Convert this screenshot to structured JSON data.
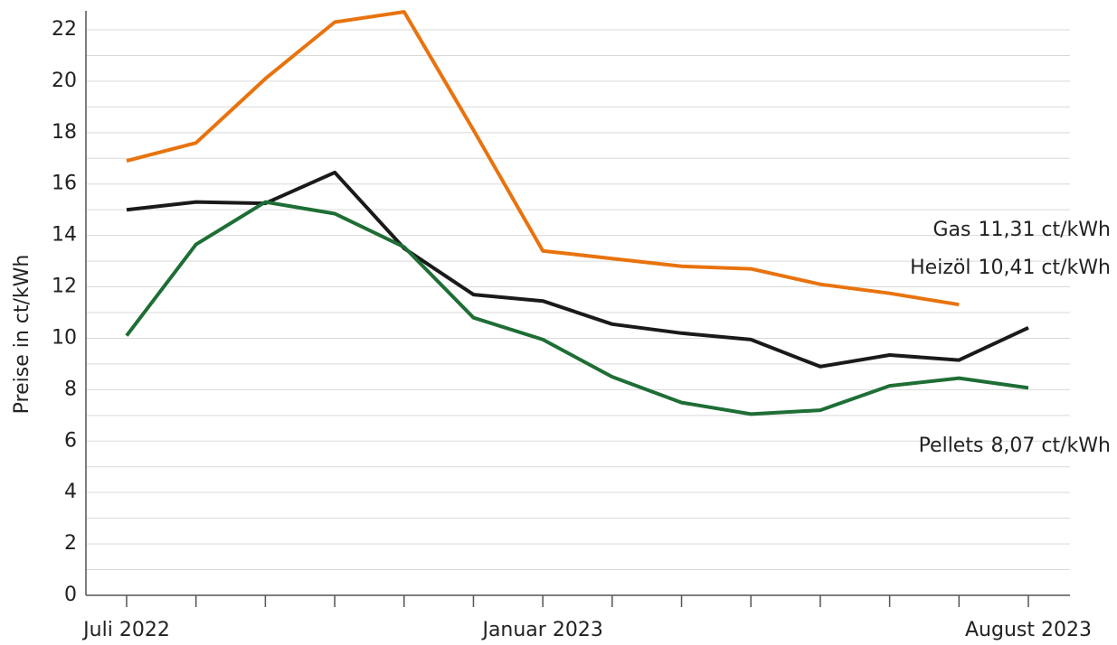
{
  "chart_data": {
    "type": "line",
    "y_label": "Preise in ct/kWh",
    "categories": [
      "Juli 2022",
      null,
      null,
      null,
      null,
      null,
      "Januar 2023",
      null,
      null,
      null,
      null,
      null,
      null,
      "August 2023"
    ],
    "series": [
      {
        "name": "Gas",
        "color": "#e8730e",
        "end_label": "11,31 ct/kWh",
        "values": [
          16.9,
          17.6,
          20.1,
          22.3,
          22.7,
          18.1,
          13.4,
          13.1,
          12.8,
          12.7,
          12.1,
          11.75,
          11.31,
          null
        ]
      },
      {
        "name": "Heizöl",
        "color": "#1a1a1a",
        "end_label": "10,41 ct/kWh",
        "values": [
          15.0,
          15.3,
          15.25,
          16.45,
          13.5,
          11.7,
          11.45,
          10.55,
          10.2,
          9.95,
          8.9,
          9.35,
          9.15,
          10.41
        ]
      },
      {
        "name": "Pellets",
        "color": "#1e6e35",
        "end_label": "8,07 ct/kWh",
        "values": [
          10.1,
          13.65,
          15.3,
          14.85,
          13.55,
          10.8,
          9.95,
          8.5,
          7.5,
          7.05,
          7.2,
          8.15,
          8.45,
          8.07
        ]
      }
    ],
    "ylim": [
      0,
      23
    ],
    "yticks": [
      0,
      2,
      4,
      6,
      8,
      10,
      12,
      14,
      16,
      18,
      20,
      22
    ],
    "yticks_minor": [
      1,
      3,
      5,
      7,
      9,
      11,
      13,
      15,
      17,
      19,
      21
    ],
    "grid": true
  }
}
